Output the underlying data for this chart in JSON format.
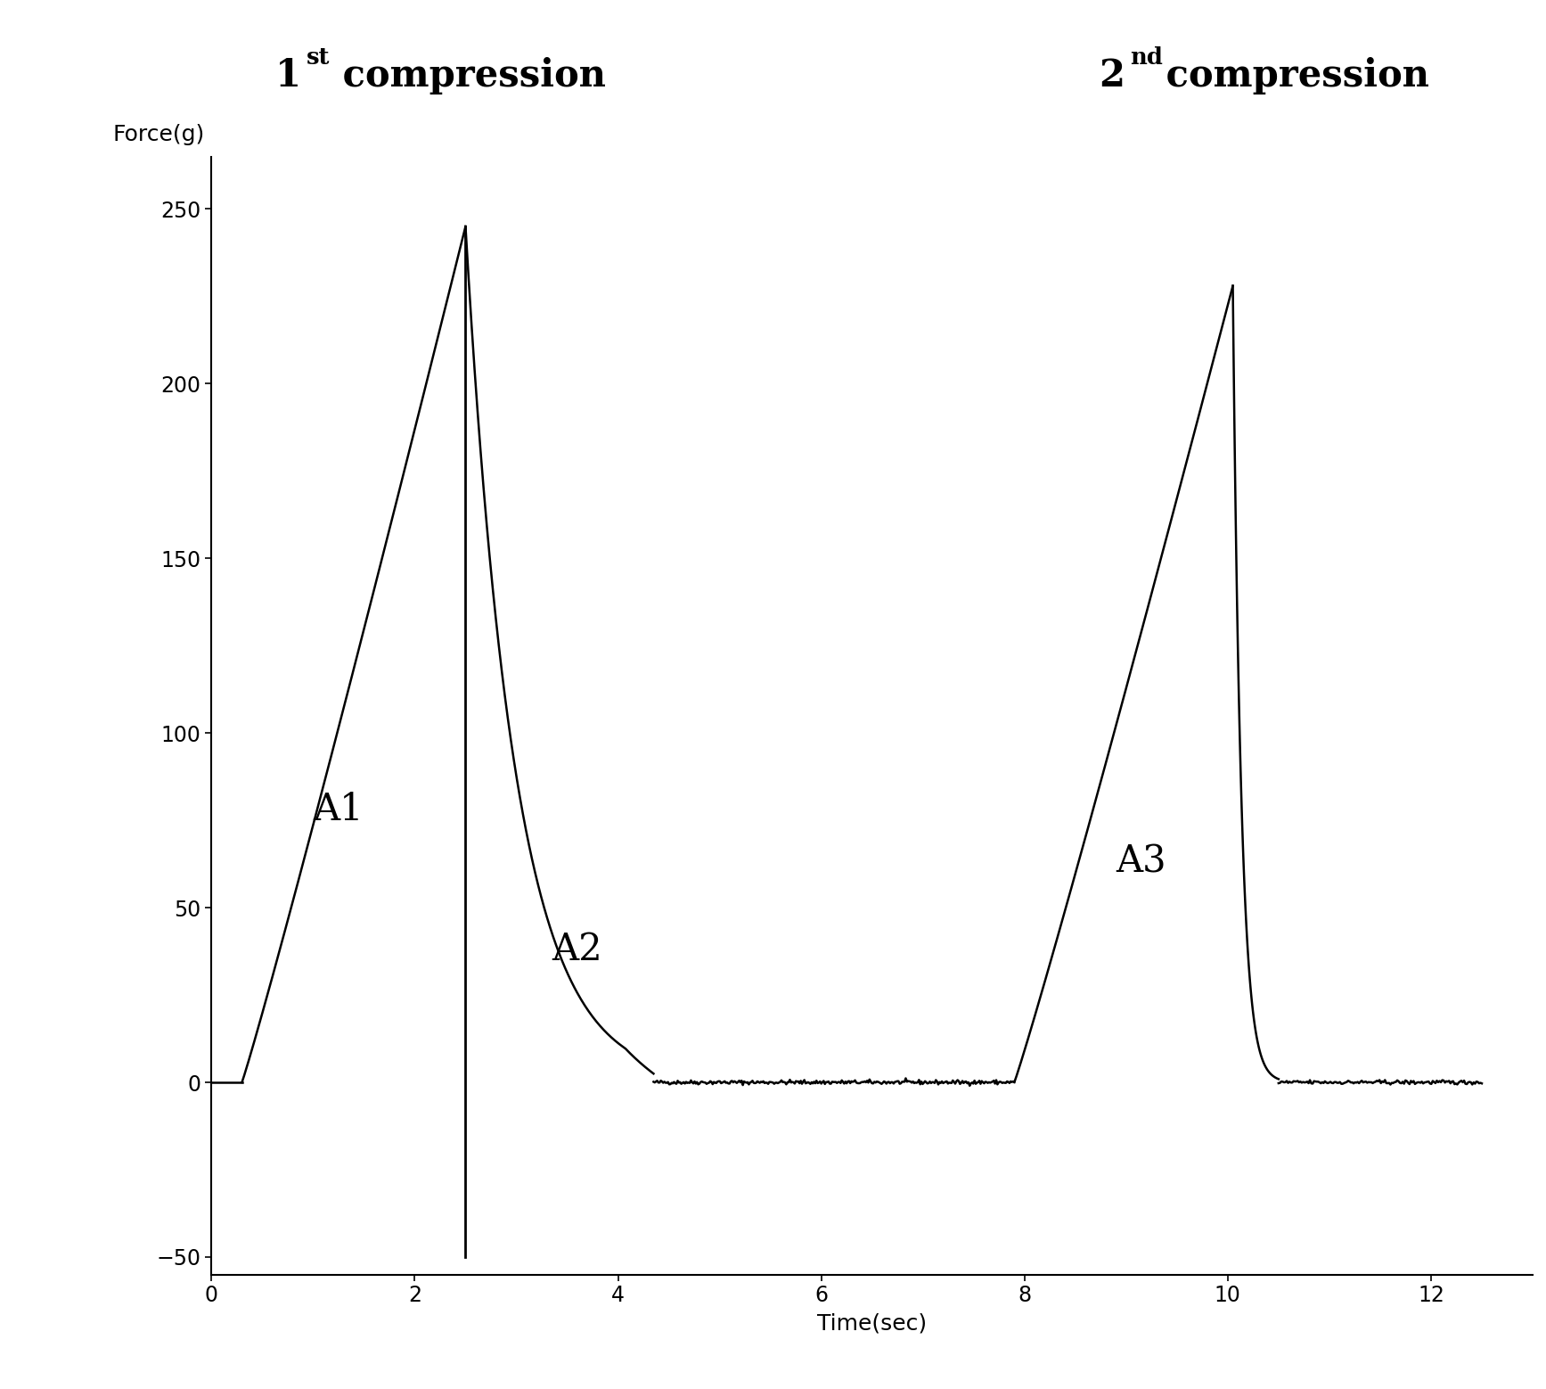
{
  "ylabel": "Force(g)",
  "xlabel": "Time(sec)",
  "xlim": [
    0,
    13
  ],
  "ylim": [
    -55,
    265
  ],
  "yticks": [
    -50,
    0,
    50,
    100,
    150,
    200,
    250
  ],
  "xticks": [
    0,
    2,
    4,
    6,
    8,
    10,
    12
  ],
  "peak1_x": 2.5,
  "peak1_y": 245,
  "peak1_start": 0.3,
  "decay1_end": 4.35,
  "peak2_x": 10.05,
  "peak2_y": 228,
  "peak2_start": 7.9,
  "decay2_end": 10.5,
  "flat_end": 12.5,
  "vline_x": 2.5,
  "vline_bottom": -50,
  "A1_x": 1.0,
  "A1_y": 75,
  "A2_x": 3.35,
  "A2_y": 35,
  "A3_x": 8.9,
  "A3_y": 60,
  "line_color": "#000000",
  "bg_color": "#ffffff",
  "title_fontsize": 30,
  "label_fontsize": 18,
  "area_label_fontsize": 30,
  "tick_fontsize": 17
}
